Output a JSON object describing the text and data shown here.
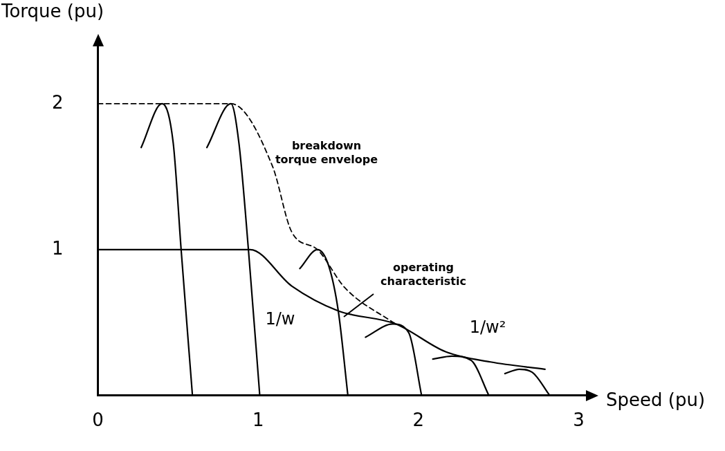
{
  "chart_data": {
    "type": "line",
    "xlabel": "Speed (pu)",
    "ylabel": "Torque (pu)",
    "xlim": [
      0,
      3.05
    ],
    "ylim": [
      0,
      2.4
    ],
    "xticks": [
      0,
      1,
      2,
      3
    ],
    "yticks": [
      1,
      2
    ],
    "grid": false,
    "legend": false,
    "marker": "none",
    "series": [
      {
        "color": "#000000",
        "line_style": "dashed",
        "x": [
          0,
          0.83,
          1.09,
          1.21,
          1.37,
          1.54,
          1.83,
          1.86
        ],
        "values": [
          2,
          2,
          1.57,
          1.12,
          1.0,
          0.74,
          0.51,
          0.49
        ]
      },
      {
        "color": "#000000",
        "x": [
          0,
          0.95,
          1.21,
          1.5,
          1.86,
          2.17,
          2.45,
          2.79
        ],
        "values": [
          1,
          1,
          0.75,
          0.58,
          0.49,
          0.3,
          0.23,
          0.18
        ]
      },
      {
        "color": "#000000",
        "x": [
          0.27,
          0.4,
          0.47,
          0.52,
          0.59
        ],
        "values": [
          1.7,
          2,
          1.73,
          0.99,
          0
        ]
      },
      {
        "color": "#000000",
        "x": [
          0.68,
          0.83,
          0.88,
          0.94,
          1.01
        ],
        "values": [
          1.7,
          2,
          1.73,
          0.99,
          0
        ]
      },
      {
        "color": "#000000",
        "x": [
          1.26,
          1.37,
          1.44,
          1.5,
          1.56
        ],
        "values": [
          0.87,
          1.0,
          0.89,
          0.58,
          0
        ]
      },
      {
        "color": "#000000",
        "x": [
          1.67,
          1.84,
          1.94,
          2.02
        ],
        "values": [
          0.4,
          0.49,
          0.43,
          0
        ]
      },
      {
        "color": "#000000",
        "x": [
          2.09,
          2.21,
          2.33,
          2.44
        ],
        "values": [
          0.25,
          0.27,
          0.24,
          0
        ]
      },
      {
        "color": "#000000",
        "x": [
          2.54,
          2.63,
          2.71,
          2.82
        ],
        "values": [
          0.15,
          0.18,
          0.16,
          0
        ]
      }
    ],
    "annotations": [
      "breakdown torque envelope",
      "operating characteristic",
      "1/w",
      "1/w²"
    ]
  }
}
